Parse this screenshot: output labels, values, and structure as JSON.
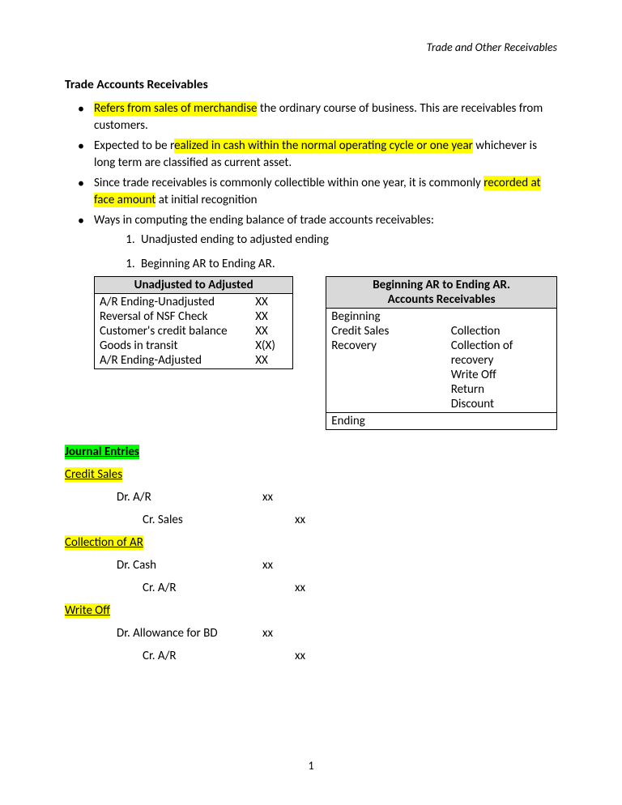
{
  "header": {
    "right_text": "Trade and Other Receivables"
  },
  "title": "Trade Accounts Receivables",
  "bullets": [
    {
      "parts": [
        {
          "text": "Refers from sales of merchandise",
          "highlight": "yellow"
        },
        {
          "text": " the ordinary course of business. This are receivables from customers."
        }
      ]
    },
    {
      "parts": [
        {
          "text": "Expected to be r"
        },
        {
          "text": "ealized in cash within the normal operating cycle or one year",
          "highlight": "yellow"
        },
        {
          "text": " whichever is long term are classified as current asset."
        }
      ]
    },
    {
      "parts": [
        {
          "text": "Since trade receivables is commonly collectible within one year, it is commonly "
        },
        {
          "text": "recorded at face amount",
          "highlight": "yellow"
        },
        {
          "text": " at initial recognition"
        }
      ]
    },
    {
      "parts": [
        {
          "text": "Ways in computing the ending balance of trade accounts receivables:"
        }
      ],
      "sublist": [
        "Unadjusted ending to adjusted ending"
      ],
      "sublist2": [
        "Beginning AR to Ending AR."
      ]
    }
  ],
  "left_table": {
    "header": "Unadjusted to Adjusted",
    "rows": [
      {
        "label": "A/R Ending-Unadjusted",
        "value": "XX"
      },
      {
        "label": "Reversal of NSF Check",
        "value": "XX"
      },
      {
        "label": "Customer's credit balance",
        "value": "XX"
      },
      {
        "label": "Goods in transit",
        "value": "X(X)"
      },
      {
        "label": "A/R Ending-Adjusted",
        "value": "XX"
      }
    ]
  },
  "right_table": {
    "header_line1": "Beginning AR to Ending AR.",
    "header_line2": "Accounts Receivables",
    "row1": {
      "left_lines": [
        "Beginning",
        "Credit Sales",
        "Recovery"
      ],
      "right_lines": [
        "",
        "Collection",
        "Collection of recovery",
        "Write Off",
        "Return",
        "Discount"
      ]
    },
    "row2_left": "Ending",
    "row2_right": ""
  },
  "journal_heading": "Journal Entries",
  "entries": [
    {
      "title": "Credit Sales",
      "dr_account": "Dr. A/R",
      "dr_amount": "xx",
      "cr_account": "Cr. Sales",
      "cr_amount": "xx"
    },
    {
      "title": "Collection of AR",
      "dr_account": "Dr. Cash",
      "dr_amount": "xx",
      "cr_account": "Cr. A/R",
      "cr_amount": "xx"
    },
    {
      "title": "Write Off",
      "dr_account": "Dr. Allowance for BD",
      "dr_amount": "xx",
      "cr_account": "Cr. A/R",
      "cr_amount": "xx"
    }
  ],
  "page_number": "1",
  "colors": {
    "highlight_yellow": "#ffff00",
    "highlight_green": "#00ff00",
    "table_header_bg": "#d9d9d9",
    "text": "#000000",
    "background": "#ffffff"
  }
}
